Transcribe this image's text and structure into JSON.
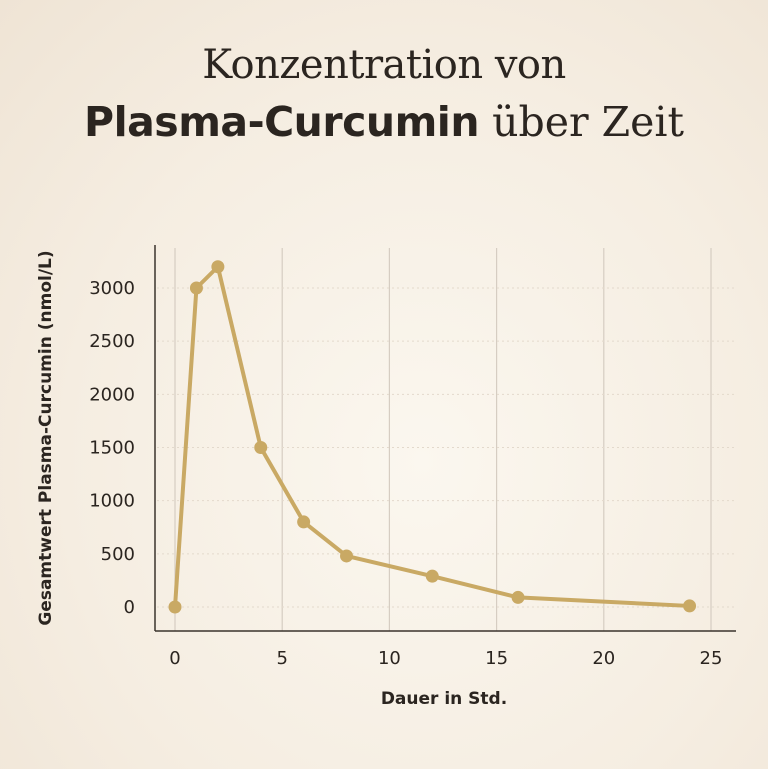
{
  "title": {
    "line1": "Konzentration von",
    "bold": "Plasma-Curcumin",
    "rest": " über Zeit"
  },
  "chart_data": {
    "type": "line",
    "title": "Konzentration von Plasma-Curcumin über Zeit",
    "xlabel": "Dauer in Std.",
    "ylabel": "Gesamtwert Plasma-Curcumin (nmol/L)",
    "x": [
      0,
      1,
      2,
      4,
      6,
      8,
      12,
      16,
      24
    ],
    "values": [
      0,
      3000,
      3200,
      1500,
      800,
      480,
      290,
      90,
      10
    ],
    "xlim": [
      0,
      25
    ],
    "ylim": [
      0,
      3000
    ],
    "xticks": [
      "0",
      "5",
      "10",
      "15",
      "20",
      "25"
    ],
    "yticks": [
      "0",
      "500",
      "1000",
      "1500",
      "2000",
      "2500",
      "3000"
    ],
    "grid": true,
    "color": "#c9a964"
  }
}
